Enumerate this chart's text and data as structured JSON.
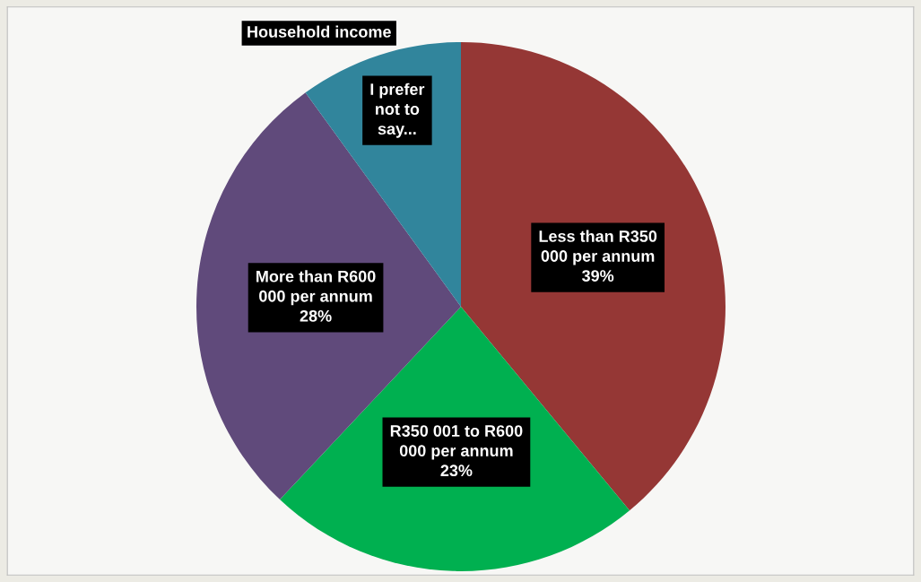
{
  "chart_data": {
    "type": "pie",
    "title": "Household income",
    "categories": [
      "Less than R350 000 per annum",
      "R350 001 to R600 000 per annum",
      "More than R600 000 per annum",
      "I prefer not to say..."
    ],
    "values": [
      39,
      23,
      28,
      10
    ],
    "colors": [
      "#953735",
      "#00b050",
      "#604a7b",
      "#31859c"
    ],
    "value_labels": [
      "39%",
      "23%",
      "28%",
      null
    ],
    "legend": false
  }
}
